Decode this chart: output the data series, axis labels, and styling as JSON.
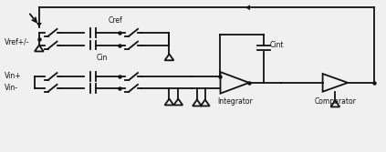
{
  "bg_color": "#f0f0f0",
  "line_color": "#111111",
  "text_color": "#111111",
  "lw": 1.3,
  "figsize": [
    4.23,
    1.67
  ],
  "dpi": 100,
  "labels": {
    "Vref": "Vref+/-",
    "Cref": "Cref",
    "Cin": "Cin",
    "Cint": "Cint",
    "Vin_plus": "Vin+",
    "Vin_minus": "Vin-",
    "Integrator": "Integrator",
    "Comparator": "Comparator"
  },
  "font_size": 5.5
}
